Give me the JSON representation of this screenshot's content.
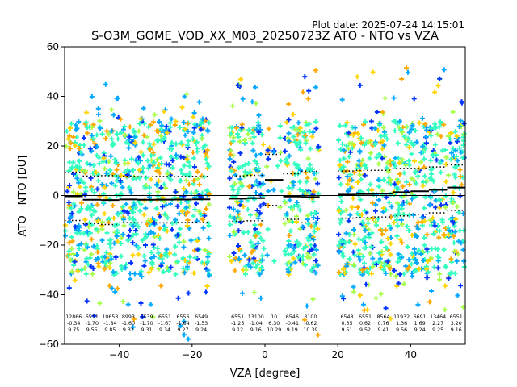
{
  "plot_date": "Plot date: 2025-07-24 14:15:01",
  "chart_data": {
    "type": "scatter",
    "title": "S-O3M_GOME_VOD_XX_M03_20250723Z ATO - NTO vs VZA",
    "xlabel": "VZA [degree]",
    "ylabel": "ATO - NTO [DU]",
    "xlim": [
      -55,
      55
    ],
    "ylim": [
      -60,
      60
    ],
    "xticks": [
      "−40",
      "−20",
      "0",
      "20",
      "40"
    ],
    "xtick_values": [
      -40,
      -20,
      0,
      20,
      40
    ],
    "yticks": [
      "−60",
      "−40",
      "−20",
      "0",
      "20",
      "40",
      "60"
    ],
    "ytick_values": [
      -60,
      -40,
      -20,
      0,
      20,
      40,
      60
    ],
    "grid": false,
    "marker": "+",
    "zero_line": 0,
    "colors": {
      "cyan_green": "#33ffc0",
      "light_blue": "#00a8ff",
      "blue": "#0032ff",
      "yellow": "#ffd400",
      "orange": "#ffa800",
      "lime": "#a8ff4a",
      "mean_line": "#000000",
      "std_line": "#000000"
    },
    "bins": [
      {
        "x0": -55,
        "x1": -50,
        "count": "12866",
        "mean": "-0.34",
        "std": "9.75",
        "lo": -52,
        "hi": 31
      },
      {
        "x0": -50,
        "x1": -45,
        "count": "6511",
        "mean": "-1.70",
        "std": "9.55",
        "lo": -58,
        "hi": 40
      },
      {
        "x0": -45,
        "x1": -40,
        "count": "10653",
        "mean": "-1.84",
        "std": "9.85",
        "lo": -50,
        "hi": 45
      },
      {
        "x0": -40,
        "x1": -35,
        "count": "8993",
        "mean": "-1.60",
        "std": "9.32",
        "lo": -54,
        "hi": 33
      },
      {
        "x0": -35,
        "x1": -30,
        "count": "6539",
        "mean": "-1.70",
        "std": "9.31",
        "lo": -52,
        "hi": 37
      },
      {
        "x0": -30,
        "x1": -25,
        "count": "6551",
        "mean": "-1.67",
        "std": "9.34",
        "lo": -48,
        "hi": 37
      },
      {
        "x0": -25,
        "x1": -20,
        "count": "6556",
        "mean": "-1.64",
        "std": "9.27",
        "lo": -58,
        "hi": 42
      },
      {
        "x0": -20,
        "x1": -15,
        "count": "6549",
        "mean": "-1.53",
        "std": "9.24",
        "lo": -50,
        "hi": 44
      },
      {
        "x0": -10,
        "x1": -5,
        "count": "6551",
        "mean": "-1.25",
        "std": "9.12",
        "lo": -49,
        "hi": 48
      },
      {
        "x0": -5,
        "x1": 0,
        "count": "13100",
        "mean": "-1.04",
        "std": "9.16",
        "lo": -45,
        "hi": 46
      },
      {
        "x0": 0,
        "x1": 5,
        "count": "10",
        "mean": "6.30",
        "std": "10.29",
        "lo": -10,
        "hi": 20
      },
      {
        "x0": 5,
        "x1": 10,
        "count": "6546",
        "mean": "-0.41",
        "std": "9.19",
        "lo": -42,
        "hi": 38
      },
      {
        "x0": 10,
        "x1": 15,
        "count": "3100",
        "mean": "-0.62",
        "std": "10.39",
        "lo": -58,
        "hi": 52
      },
      {
        "x0": 20,
        "x1": 25,
        "count": "6548",
        "mean": "0.35",
        "std": "9.51",
        "lo": -46,
        "hi": 39
      },
      {
        "x0": 25,
        "x1": 30,
        "count": "6551",
        "mean": "0.62",
        "std": "9.52",
        "lo": -48,
        "hi": 51
      },
      {
        "x0": 30,
        "x1": 35,
        "count": "8564",
        "mean": "0.76",
        "std": "9.41",
        "lo": -55,
        "hi": 40
      },
      {
        "x0": 35,
        "x1": 40,
        "count": "11932",
        "mean": "1.36",
        "std": "9.56",
        "lo": -47,
        "hi": 52
      },
      {
        "x0": 40,
        "x1": 45,
        "count": "6691",
        "mean": "1.69",
        "std": "9.24",
        "lo": -45,
        "hi": 43
      },
      {
        "x0": 45,
        "x1": 50,
        "count": "13464",
        "mean": "2.27",
        "std": "9.25",
        "lo": -47,
        "hi": 55
      },
      {
        "x0": 50,
        "x1": 55,
        "count": "6551",
        "mean": "3.20",
        "std": "9.16",
        "lo": -47,
        "hi": 39
      }
    ]
  }
}
